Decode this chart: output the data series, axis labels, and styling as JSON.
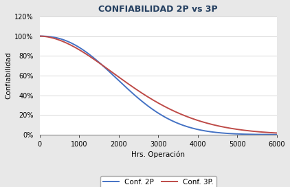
{
  "title": "CONFIABILIDAD 2P vs 3P",
  "xlabel": "Hrs. Operación",
  "ylabel": "Confiabilidad",
  "xlim": [
    0,
    6000
  ],
  "ylim": [
    0,
    1.2
  ],
  "yticks": [
    0,
    0.2,
    0.4,
    0.6,
    0.8,
    1.0,
    1.2
  ],
  "xticks": [
    0,
    1000,
    2000,
    3000,
    4000,
    5000,
    6000
  ],
  "line2p_color": "#4472C4",
  "line3p_color": "#BE4B48",
  "line_width": 1.4,
  "legend_labels": [
    "Conf. 2P",
    "Conf. 3P."
  ],
  "background_color": "#FFFFFF",
  "title_color": "#243F60",
  "weibull2p": {
    "eta": 2500,
    "beta": 2.3
  },
  "weibull3p": {
    "eta": 2800,
    "beta": 1.85
  }
}
